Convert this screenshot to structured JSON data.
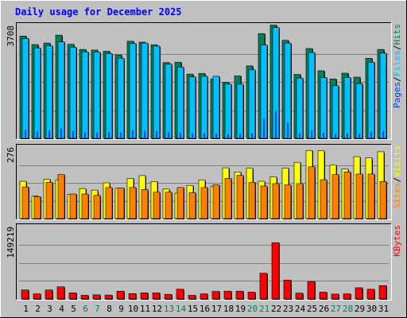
{
  "title": "Daily usage for December 2025",
  "colors": {
    "background": "#c0c0c0",
    "title": "#0000ff",
    "hits": "#00805c",
    "files": "#00c0ff",
    "pages": "#0040ff",
    "visits": "#ffff00",
    "sites": "#ff8000",
    "kbytes": "#ff0000",
    "weekend_label": "#00805c"
  },
  "chart_data": [
    {
      "type": "bar",
      "panel": "hits-files-pages",
      "categories": [
        "1",
        "2",
        "3",
        "4",
        "5",
        "6",
        "7",
        "8",
        "9",
        "10",
        "11",
        "12",
        "13",
        "14",
        "15",
        "16",
        "17",
        "18",
        "19",
        "20",
        "21",
        "22",
        "23",
        "24",
        "25",
        "26",
        "27",
        "28",
        "29",
        "30",
        "31"
      ],
      "ymax_label": "3708",
      "ylim": [
        0,
        3708
      ],
      "legend": [
        {
          "key": "pages",
          "label": "Pages"
        },
        {
          "key": "files",
          "label": "Files"
        },
        {
          "key": "hits",
          "label": "Hits"
        }
      ],
      "separator": "/",
      "series": [
        {
          "name": "Hits",
          "color_key": "hits",
          "values": [
            3360,
            3080,
            3130,
            3390,
            3090,
            2920,
            2900,
            2860,
            2740,
            3190,
            3160,
            3070,
            2490,
            2500,
            2110,
            2130,
            1950,
            1840,
            2050,
            2380,
            3440,
            3720,
            3220,
            2100,
            2950,
            2220,
            1950,
            2140,
            2010,
            2630,
            2920
          ]
        },
        {
          "name": "Files",
          "color_key": "files",
          "values": [
            3280,
            2970,
            3040,
            3170,
            2990,
            2840,
            2830,
            2790,
            2630,
            3120,
            3130,
            3030,
            2440,
            2340,
            2020,
            2040,
            2040,
            1780,
            1780,
            2250,
            3070,
            3640,
            3130,
            1980,
            2820,
            2000,
            1730,
            2000,
            1800,
            2500,
            2800
          ]
        },
        {
          "name": "Pages",
          "color_key": "pages",
          "values": [
            280,
            220,
            260,
            320,
            240,
            200,
            190,
            200,
            190,
            260,
            250,
            240,
            200,
            190,
            160,
            170,
            150,
            140,
            150,
            180,
            650,
            900,
            500,
            170,
            250,
            180,
            150,
            170,
            160,
            220,
            240
          ]
        }
      ]
    },
    {
      "type": "bar",
      "panel": "visits-sites",
      "categories": [
        "1",
        "2",
        "3",
        "4",
        "5",
        "6",
        "7",
        "8",
        "9",
        "10",
        "11",
        "12",
        "13",
        "14",
        "15",
        "16",
        "17",
        "18",
        "19",
        "20",
        "21",
        "22",
        "23",
        "24",
        "25",
        "26",
        "27",
        "28",
        "29",
        "30",
        "31"
      ],
      "ymax_label": "276",
      "ylim": [
        0,
        276
      ],
      "legend": [
        {
          "key": "sites",
          "label": "Sites"
        },
        {
          "key": "visits",
          "label": "Visits"
        }
      ],
      "separator": "/",
      "series": [
        {
          "name": "Visits",
          "color_key": "visits",
          "values": [
            144,
            87,
            152,
            150,
            93,
            116,
            110,
            138,
            117,
            155,
            166,
            143,
            114,
            98,
            128,
            149,
            124,
            196,
            180,
            194,
            144,
            161,
            195,
            217,
            263,
            262,
            206,
            191,
            239,
            234,
            258
          ]
        },
        {
          "name": "Sites",
          "color_key": "sites",
          "values": [
            122,
            85,
            140,
            170,
            95,
            95,
            90,
            120,
            118,
            120,
            112,
            102,
            102,
            120,
            100,
            120,
            130,
            155,
            167,
            140,
            126,
            135,
            130,
            135,
            200,
            150,
            170,
            180,
            172,
            172,
            143
          ]
        }
      ]
    },
    {
      "type": "bar",
      "panel": "kbytes",
      "categories": [
        "1",
        "2",
        "3",
        "4",
        "5",
        "6",
        "7",
        "8",
        "9",
        "10",
        "11",
        "12",
        "13",
        "14",
        "15",
        "16",
        "17",
        "18",
        "19",
        "20",
        "21",
        "22",
        "23",
        "24",
        "25",
        "26",
        "27",
        "28",
        "29",
        "30",
        "31"
      ],
      "ymax_label": "149219",
      "ylim": [
        0,
        149219
      ],
      "legend": [
        {
          "key": "kbytes",
          "label": "KBytes"
        }
      ],
      "separator": "",
      "series": [
        {
          "name": "KBytes",
          "color_key": "kbytes",
          "values": [
            18500,
            10500,
            18500,
            25000,
            12500,
            7500,
            8500,
            8000,
            16000,
            11000,
            12500,
            12500,
            9500,
            20000,
            7500,
            10500,
            15500,
            16000,
            16000,
            14000,
            53000,
            116000,
            39000,
            12000,
            36000,
            14000,
            10000,
            10500,
            23000,
            20000,
            27500
          ]
        }
      ]
    }
  ],
  "weekend_days": [
    "6",
    "7",
    "13",
    "14",
    "20",
    "21",
    "27",
    "28"
  ]
}
